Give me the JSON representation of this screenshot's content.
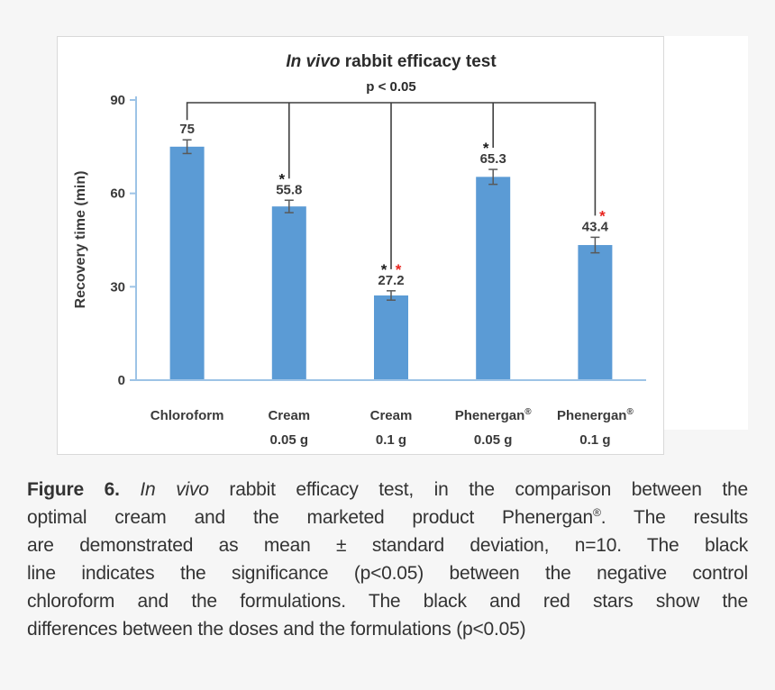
{
  "page": {
    "background": "#f6f6f6",
    "figure_background": "#ffffff"
  },
  "chart_data": {
    "type": "bar",
    "title": "In vivo rabbit efficacy test",
    "title_parts": [
      {
        "text": "In vivo",
        "italic": true
      },
      {
        "text": " rabbit efficacy test",
        "italic": false
      }
    ],
    "subtitle": "p < 0.05",
    "xlabel": "",
    "ylabel": "Recovery time (min)",
    "ylim": [
      0,
      90
    ],
    "yticks": [
      0,
      30,
      60,
      90
    ],
    "grid": false,
    "legend": null,
    "categories": [
      [
        "Chloroform"
      ],
      [
        "Cream",
        "0.05 g"
      ],
      [
        "Cream",
        "0.1 g"
      ],
      [
        "Phenergan®",
        "0.05 g"
      ],
      [
        "Phenergan®",
        "0.1 g"
      ]
    ],
    "values": [
      75,
      55.8,
      27.2,
      65.3,
      43.4
    ],
    "errors": [
      2.2,
      2.0,
      1.5,
      2.4,
      2.5
    ],
    "value_labels": [
      "75",
      "55.8",
      "27.2",
      "65.3",
      "43.4"
    ],
    "stars": [
      [],
      [
        {
          "color": "black",
          "side": "left"
        }
      ],
      [
        {
          "color": "black",
          "side": "left"
        },
        {
          "color": "red",
          "side": "right"
        }
      ],
      [
        {
          "color": "black",
          "side": "left"
        }
      ],
      [
        {
          "color": "red",
          "side": "right"
        }
      ]
    ],
    "significance_bracket": {
      "label": "p < 0.05",
      "connects_bars": [
        0,
        1,
        2,
        3,
        4
      ]
    },
    "colors": {
      "bar": "#5b9bd5",
      "axis": "#9dc3e6",
      "error_bar": "#595959",
      "bracket_line": "#3f3f3f",
      "text": "#3a3a3a",
      "title_text": "#2b2b2b",
      "star_black": "#1a1a1a",
      "star_red": "#e8251f"
    }
  },
  "caption": {
    "lines": [
      [
        {
          "text": "Figure 6. ",
          "style": "bold"
        },
        {
          "text": "In vivo",
          "style": "italic"
        },
        {
          "text": " rabbit efficacy test, in the comparison between the",
          "style": "normal"
        }
      ],
      [
        {
          "text": "optimal cream and the marketed product Phenergan",
          "style": "normal"
        },
        {
          "text": "®",
          "style": "sup"
        },
        {
          "text": ". The results",
          "style": "normal"
        }
      ],
      [
        {
          "text": "are demonstrated as mean ± standard deviation, n=10. The black",
          "style": "normal"
        }
      ],
      [
        {
          "text": "line indicates the significance (p<0.05) between the negative control",
          "style": "normal"
        }
      ],
      [
        {
          "text": "chloroform and the formulations. The black and red stars show the",
          "style": "normal"
        }
      ],
      [
        {
          "text": "differences between the doses and the formulations (p<0.05)",
          "style": "normal"
        }
      ]
    ]
  }
}
